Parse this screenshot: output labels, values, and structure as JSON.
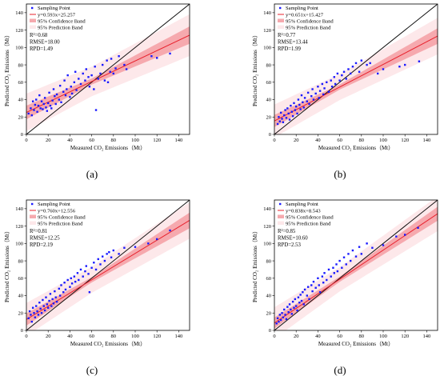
{
  "chart_data": [
    {
      "panel_label": "(a)",
      "type": "scatter",
      "xlabel": "Measured CO₂ Emissions（Mt）",
      "ylabel": "Predicted CO₂ Emissions（Mt）",
      "xlim": [
        0,
        150
      ],
      "ylim": [
        0,
        150
      ],
      "xticks": [
        0,
        20,
        40,
        60,
        80,
        100,
        120,
        140
      ],
      "yticks": [
        0,
        20,
        40,
        60,
        80,
        100,
        120,
        140
      ],
      "fit": {
        "slope": 0.593,
        "intercept": 25.257
      },
      "confidence_halfwidth": [
        3.5,
        10
      ],
      "prediction_halfwidth": [
        17,
        24
      ],
      "stats": [
        "R²=0.68",
        "RMSE=18.00",
        "RPD=1.49"
      ],
      "equation_text": "y=0.593x+25.257",
      "legend": [
        "Sampling Point",
        "y=0.593x+25.257",
        "95% Confidence Band",
        "95% Prediction Band"
      ],
      "points": [
        [
          2,
          24
        ],
        [
          4,
          30
        ],
        [
          5,
          22
        ],
        [
          6,
          38
        ],
        [
          7,
          28
        ],
        [
          8,
          34
        ],
        [
          9,
          40
        ],
        [
          10,
          26
        ],
        [
          11,
          33
        ],
        [
          12,
          45
        ],
        [
          13,
          30
        ],
        [
          14,
          38
        ],
        [
          15,
          29
        ],
        [
          16,
          35
        ],
        [
          17,
          42
        ],
        [
          18,
          31
        ],
        [
          19,
          27
        ],
        [
          20,
          36
        ],
        [
          21,
          48
        ],
        [
          22,
          33
        ],
        [
          23,
          30
        ],
        [
          24,
          39
        ],
        [
          25,
          52
        ],
        [
          26,
          44
        ],
        [
          27,
          35
        ],
        [
          28,
          46
        ],
        [
          30,
          40
        ],
        [
          31,
          56
        ],
        [
          32,
          37
        ],
        [
          34,
          49
        ],
        [
          35,
          62
        ],
        [
          36,
          45
        ],
        [
          37,
          52
        ],
        [
          38,
          68
        ],
        [
          40,
          43
        ],
        [
          41,
          55
        ],
        [
          42,
          47
        ],
        [
          44,
          60
        ],
        [
          45,
          72
        ],
        [
          46,
          51
        ],
        [
          48,
          64
        ],
        [
          50,
          58
        ],
        [
          52,
          70
        ],
        [
          54,
          62
        ],
        [
          55,
          75
        ],
        [
          57,
          66
        ],
        [
          58,
          55
        ],
        [
          60,
          68
        ],
        [
          62,
          52
        ],
        [
          63,
          78
        ],
        [
          64,
          28
        ],
        [
          66,
          64
        ],
        [
          68,
          70
        ],
        [
          70,
          80
        ],
        [
          72,
          62
        ],
        [
          74,
          85
        ],
        [
          75,
          60
        ],
        [
          77,
          72
        ],
        [
          78,
          87
        ],
        [
          80,
          70
        ],
        [
          82,
          76
        ],
        [
          85,
          90
        ],
        [
          90,
          80
        ],
        [
          92,
          75
        ],
        [
          115,
          90
        ],
        [
          120,
          88
        ],
        [
          132,
          93
        ]
      ]
    },
    {
      "panel_label": "(b)",
      "type": "scatter",
      "xlabel": "Measured CO₂ Emissions（Mt）",
      "ylabel": "Predicted CO₂ Emissions（Mt）",
      "xlim": [
        0,
        150
      ],
      "ylim": [
        0,
        150
      ],
      "xticks": [
        0,
        20,
        40,
        60,
        80,
        100,
        120,
        140
      ],
      "yticks": [
        0,
        20,
        40,
        60,
        80,
        100,
        120,
        140
      ],
      "fit": {
        "slope": 0.651,
        "intercept": 15.427
      },
      "confidence_halfwidth": [
        3,
        9
      ],
      "prediction_halfwidth": [
        15,
        21
      ],
      "stats": [
        "R²=0.77",
        "RMSE=13.44",
        "RPD=1.99"
      ],
      "equation_text": "y=0.651x+15.427",
      "legend": [
        "Sampling Point",
        "y=0.651x+15.427",
        "95% Confidence Band",
        "95% Prediction Band"
      ],
      "points": [
        [
          3,
          12
        ],
        [
          4,
          20
        ],
        [
          5,
          15
        ],
        [
          6,
          25
        ],
        [
          7,
          18
        ],
        [
          8,
          14
        ],
        [
          9,
          22
        ],
        [
          10,
          28
        ],
        [
          11,
          19
        ],
        [
          12,
          30
        ],
        [
          13,
          24
        ],
        [
          14,
          17
        ],
        [
          15,
          33
        ],
        [
          16,
          26
        ],
        [
          17,
          21
        ],
        [
          18,
          36
        ],
        [
          19,
          28
        ],
        [
          20,
          32
        ],
        [
          21,
          24
        ],
        [
          22,
          40
        ],
        [
          23,
          34
        ],
        [
          24,
          29
        ],
        [
          25,
          45
        ],
        [
          26,
          37
        ],
        [
          27,
          31
        ],
        [
          28,
          42
        ],
        [
          30,
          38
        ],
        [
          31,
          48
        ],
        [
          32,
          35
        ],
        [
          34,
          44
        ],
        [
          35,
          52
        ],
        [
          36,
          40
        ],
        [
          38,
          47
        ],
        [
          40,
          55
        ],
        [
          41,
          42
        ],
        [
          42,
          50
        ],
        [
          44,
          58
        ],
        [
          45,
          46
        ],
        [
          46,
          53
        ],
        [
          48,
          60
        ],
        [
          50,
          49
        ],
        [
          52,
          62
        ],
        [
          53,
          55
        ],
        [
          55,
          66
        ],
        [
          56,
          58
        ],
        [
          58,
          70
        ],
        [
          60,
          62
        ],
        [
          62,
          68
        ],
        [
          64,
          72
        ],
        [
          66,
          64
        ],
        [
          68,
          75
        ],
        [
          70,
          70
        ],
        [
          72,
          78
        ],
        [
          75,
          82
        ],
        [
          78,
          72
        ],
        [
          80,
          85
        ],
        [
          85,
          80
        ],
        [
          88,
          82
        ],
        [
          95,
          70
        ],
        [
          100,
          75
        ],
        [
          115,
          78
        ],
        [
          120,
          80
        ],
        [
          133,
          84
        ]
      ]
    },
    {
      "panel_label": "(c)",
      "type": "scatter",
      "xlabel": "Measured CO₂ Emissions（Mt）",
      "ylabel": "Predicted CO₂ Emissions（Mt）",
      "xlim": [
        0,
        150
      ],
      "ylim": [
        0,
        150
      ],
      "xticks": [
        0,
        20,
        40,
        60,
        80,
        100,
        120,
        140
      ],
      "yticks": [
        0,
        20,
        40,
        60,
        80,
        100,
        120,
        140
      ],
      "fit": {
        "slope": 0.76,
        "intercept": 12.556
      },
      "confidence_halfwidth": [
        3,
        9
      ],
      "prediction_halfwidth": [
        15,
        21
      ],
      "stats": [
        "R²=0.81",
        "RMSE=12.25",
        "RPD=2.19"
      ],
      "equation_text": "y=0.760x+12.556",
      "legend": [
        "Sampling Point",
        "y=0.760x+12.556",
        "95% Confidence Band",
        "95% Prediction Band"
      ],
      "points": [
        [
          2,
          14
        ],
        [
          3,
          22
        ],
        [
          4,
          18
        ],
        [
          5,
          10
        ],
        [
          6,
          26
        ],
        [
          7,
          20
        ],
        [
          8,
          15
        ],
        [
          9,
          28
        ],
        [
          10,
          22
        ],
        [
          11,
          18
        ],
        [
          12,
          32
        ],
        [
          13,
          25
        ],
        [
          14,
          20
        ],
        [
          15,
          35
        ],
        [
          16,
          28
        ],
        [
          17,
          23
        ],
        [
          18,
          38
        ],
        [
          19,
          30
        ],
        [
          20,
          26
        ],
        [
          21,
          34
        ],
        [
          22,
          42
        ],
        [
          23,
          28
        ],
        [
          24,
          36
        ],
        [
          25,
          31
        ],
        [
          26,
          45
        ],
        [
          27,
          38
        ],
        [
          28,
          33
        ],
        [
          30,
          48
        ],
        [
          31,
          40
        ],
        [
          32,
          52
        ],
        [
          34,
          44
        ],
        [
          35,
          55
        ],
        [
          36,
          47
        ],
        [
          38,
          58
        ],
        [
          40,
          50
        ],
        [
          41,
          60
        ],
        [
          42,
          54
        ],
        [
          44,
          62
        ],
        [
          45,
          56
        ],
        [
          47,
          66
        ],
        [
          48,
          58
        ],
        [
          50,
          70
        ],
        [
          52,
          62
        ],
        [
          54,
          68
        ],
        [
          55,
          74
        ],
        [
          57,
          65
        ],
        [
          58,
          44
        ],
        [
          60,
          72
        ],
        [
          62,
          78
        ],
        [
          64,
          70
        ],
        [
          66,
          82
        ],
        [
          68,
          76
        ],
        [
          70,
          85
        ],
        [
          72,
          80
        ],
        [
          74,
          88
        ],
        [
          76,
          90
        ],
        [
          78,
          84
        ],
        [
          80,
          92
        ],
        [
          85,
          88
        ],
        [
          90,
          95
        ],
        [
          100,
          96
        ],
        [
          112,
          100
        ],
        [
          120,
          105
        ],
        [
          132,
          115
        ]
      ]
    },
    {
      "panel_label": "(d)",
      "type": "scatter",
      "xlabel": "Measured CO₂ Emissions（Mt）",
      "ylabel": "Predicted CO₂ Emissions（Mt）",
      "xlim": [
        0,
        150
      ],
      "ylim": [
        0,
        150
      ],
      "xticks": [
        0,
        20,
        40,
        60,
        80,
        100,
        120,
        140
      ],
      "yticks": [
        0,
        20,
        40,
        60,
        80,
        100,
        120,
        140
      ],
      "fit": {
        "slope": 0.838,
        "intercept": 8.543
      },
      "confidence_halfwidth": [
        3,
        8
      ],
      "prediction_halfwidth": [
        14,
        20
      ],
      "stats": [
        "R²=0.85",
        "RMSE=10.60",
        "RPD=2.53"
      ],
      "equation_text": "y=0.838x+8.543",
      "legend": [
        "Sampling Point",
        "y=0.838x+8.543",
        "95% Confidence Band",
        "95% Prediction Band"
      ],
      "points": [
        [
          2,
          8
        ],
        [
          3,
          14
        ],
        [
          4,
          10
        ],
        [
          5,
          18
        ],
        [
          6,
          12
        ],
        [
          7,
          20
        ],
        [
          8,
          15
        ],
        [
          9,
          24
        ],
        [
          10,
          18
        ],
        [
          11,
          13
        ],
        [
          12,
          27
        ],
        [
          13,
          21
        ],
        [
          14,
          30
        ],
        [
          15,
          24
        ],
        [
          16,
          19
        ],
        [
          17,
          33
        ],
        [
          18,
          26
        ],
        [
          19,
          36
        ],
        [
          20,
          28
        ],
        [
          21,
          23
        ],
        [
          22,
          38
        ],
        [
          23,
          32
        ],
        [
          24,
          41
        ],
        [
          25,
          34
        ],
        [
          26,
          44
        ],
        [
          27,
          30
        ],
        [
          28,
          47
        ],
        [
          30,
          40
        ],
        [
          31,
          50
        ],
        [
          32,
          36
        ],
        [
          34,
          52
        ],
        [
          35,
          45
        ],
        [
          36,
          56
        ],
        [
          38,
          49
        ],
        [
          40,
          60
        ],
        [
          41,
          52
        ],
        [
          42,
          44
        ],
        [
          44,
          62
        ],
        [
          45,
          55
        ],
        [
          46,
          66
        ],
        [
          48,
          58
        ],
        [
          50,
          70
        ],
        [
          52,
          62
        ],
        [
          54,
          72
        ],
        [
          55,
          66
        ],
        [
          57,
          76
        ],
        [
          58,
          68
        ],
        [
          60,
          80
        ],
        [
          62,
          72
        ],
        [
          64,
          84
        ],
        [
          66,
          76
        ],
        [
          68,
          88
        ],
        [
          70,
          80
        ],
        [
          72,
          92
        ],
        [
          75,
          85
        ],
        [
          78,
          96
        ],
        [
          80,
          88
        ],
        [
          85,
          100
        ],
        [
          90,
          95
        ],
        [
          100,
          98
        ],
        [
          112,
          108
        ],
        [
          120,
          110
        ],
        [
          132,
          118
        ]
      ]
    }
  ]
}
